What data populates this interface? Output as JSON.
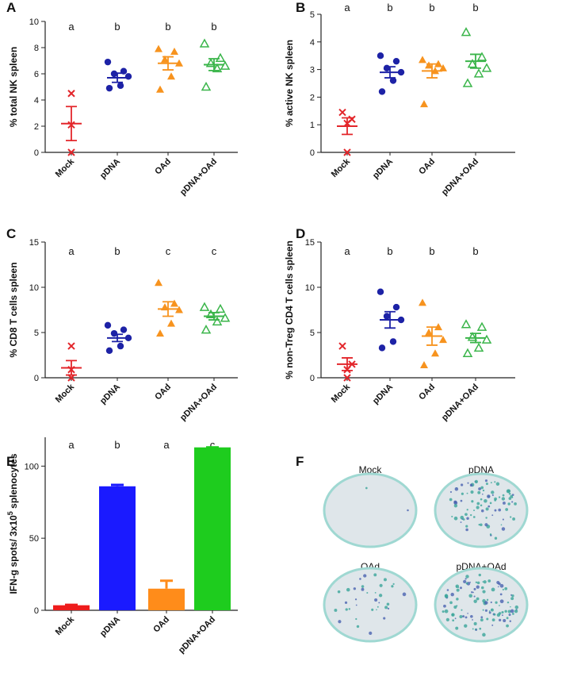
{
  "chart_data": [
    {
      "type": "dot",
      "panel_label": "A",
      "ylabel": "% total NK spleen",
      "categories": [
        "Mock",
        "pDNA",
        "OAd",
        "pDNA+OAd"
      ],
      "colors": [
        "#e3262b",
        "#1d22a6",
        "#f7931e",
        "#3ab54a"
      ],
      "markers": [
        "x",
        "circle",
        "triangle",
        "open-triangle"
      ],
      "letters": [
        "a",
        "b",
        "b",
        "b"
      ],
      "points": [
        [
          4.5,
          2.1,
          0
        ],
        [
          6.9,
          6.2,
          6.0,
          5.8,
          5.1,
          4.9
        ],
        [
          7.9,
          7.7,
          7.1,
          6.8,
          5.8,
          4.8
        ],
        [
          8.3,
          7.2,
          6.8,
          6.6,
          6.4,
          5.0
        ]
      ],
      "means": [
        2.2,
        5.7,
        6.8,
        6.7
      ],
      "sems": [
        1.3,
        0.35,
        0.5,
        0.45
      ],
      "ylim": [
        0,
        10
      ],
      "yticks": [
        0,
        2,
        4,
        6,
        8,
        10
      ]
    },
    {
      "type": "dot",
      "panel_label": "B",
      "ylabel": "% active NK spleen",
      "categories": [
        "Mock",
        "pDNA",
        "OAd",
        "pDNA+OAd"
      ],
      "colors": [
        "#e3262b",
        "#1d22a6",
        "#f7931e",
        "#3ab54a"
      ],
      "markers": [
        "x",
        "circle",
        "triangle",
        "open-triangle"
      ],
      "letters": [
        "a",
        "b",
        "b",
        "b"
      ],
      "points": [
        [
          1.45,
          1.2,
          1.05,
          0
        ],
        [
          3.5,
          3.3,
          3.05,
          2.9,
          2.6,
          2.2
        ],
        [
          3.35,
          3.2,
          3.15,
          3.05,
          2.95,
          1.75
        ],
        [
          4.35,
          3.45,
          3.2,
          3.05,
          2.85,
          2.5
        ]
      ],
      "means": [
        0.95,
        2.9,
        2.95,
        3.3
      ],
      "sems": [
        0.3,
        0.2,
        0.25,
        0.25
      ],
      "ylim": [
        0,
        5
      ],
      "yticks": [
        0,
        1,
        2,
        3,
        4,
        5
      ]
    },
    {
      "type": "dot",
      "panel_label": "C",
      "ylabel": "% CD8 T cells spleen",
      "categories": [
        "Mock",
        "pDNA",
        "OAd",
        "pDNA+OAd"
      ],
      "colors": [
        "#e3262b",
        "#1d22a6",
        "#f7931e",
        "#3ab54a"
      ],
      "markers": [
        "x",
        "circle",
        "triangle",
        "open-triangle"
      ],
      "letters": [
        "a",
        "b",
        "c",
        "c"
      ],
      "points": [
        [
          3.5,
          0.9,
          0
        ],
        [
          5.8,
          5.3,
          4.9,
          4.4,
          3.5,
          3.0
        ],
        [
          10.5,
          8.2,
          7.8,
          7.5,
          6.0,
          4.9
        ],
        [
          7.8,
          7.6,
          7.0,
          6.6,
          6.2,
          5.3
        ]
      ],
      "means": [
        1.1,
        4.4,
        7.6,
        6.8
      ],
      "sems": [
        0.8,
        0.4,
        0.8,
        0.4
      ],
      "ylim": [
        0,
        15
      ],
      "yticks": [
        0,
        5,
        10,
        15
      ]
    },
    {
      "type": "dot",
      "panel_label": "D",
      "ylabel": "% non-Treg CD4 T cells spleen",
      "categories": [
        "Mock",
        "pDNA",
        "OAd",
        "pDNA+OAd"
      ],
      "colors": [
        "#e3262b",
        "#1d22a6",
        "#f7931e",
        "#3ab54a"
      ],
      "markers": [
        "x",
        "circle",
        "triangle",
        "open-triangle"
      ],
      "letters": [
        "a",
        "b",
        "b",
        "b"
      ],
      "points": [
        [
          3.5,
          1.5,
          0.9,
          0
        ],
        [
          9.5,
          7.8,
          6.8,
          6.4,
          4.0,
          3.3
        ],
        [
          8.3,
          5.6,
          5.0,
          4.2,
          2.7,
          1.4
        ],
        [
          5.9,
          5.6,
          4.5,
          4.2,
          3.3,
          2.7
        ]
      ],
      "means": [
        1.5,
        6.4,
        4.6,
        4.4
      ],
      "sems": [
        0.7,
        0.9,
        1.0,
        0.5
      ],
      "ylim": [
        0,
        15
      ],
      "yticks": [
        0,
        5,
        10,
        15
      ]
    },
    {
      "type": "bar",
      "panel_label": "E",
      "ylabel_before": "IFN-g spots/ 3x10",
      "ylabel_superscript": "5",
      "ylabel_after": " splenocytes",
      "categories": [
        "Mock",
        "pDNA",
        "OAd",
        "pDNA+OAd"
      ],
      "colors": [
        "#ee1c1c",
        "#1a1aff",
        "#ff8c1a",
        "#1ecc1e"
      ],
      "letters": [
        "a",
        "b",
        "a",
        "c"
      ],
      "values": [
        3.5,
        86,
        15,
        113
      ],
      "errors": [
        0.3,
        1,
        5.5,
        0
      ],
      "ylim": [
        0,
        120
      ],
      "yticks": [
        0,
        50,
        100
      ]
    }
  ],
  "panel_f": {
    "panel_label": "F",
    "wells": [
      "Mock",
      "pDNA",
      "OAd",
      "pDNA+OAd"
    ]
  }
}
